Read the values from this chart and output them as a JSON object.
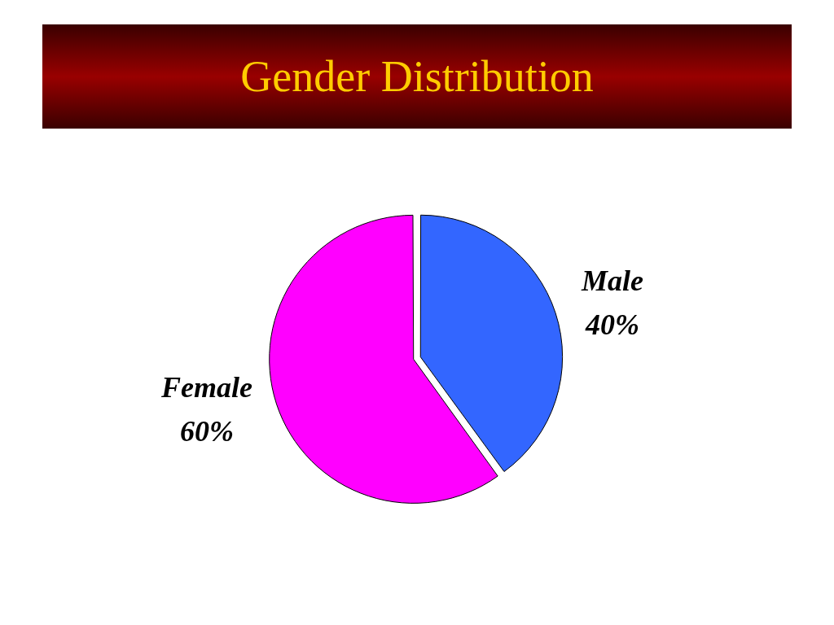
{
  "chart_data": {
    "type": "pie",
    "title": "Gender Distribution",
    "categories": [
      "Male",
      "Female"
    ],
    "values": [
      40,
      60
    ],
    "colors": [
      "#3366ff",
      "#ff00ff"
    ],
    "value_labels": [
      "40%",
      "60%"
    ]
  }
}
